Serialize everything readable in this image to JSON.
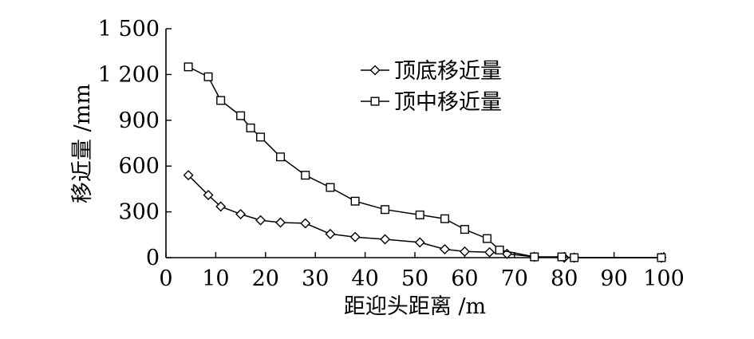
{
  "chart_data": {
    "type": "line",
    "xlabel": "距迎头距离 /m",
    "ylabel": "移近量 /mm",
    "xlim": [
      0,
      100
    ],
    "ylim": [
      0,
      1500
    ],
    "x_ticks": [
      0,
      10,
      20,
      30,
      40,
      50,
      60,
      70,
      80,
      90,
      100
    ],
    "y_ticks": [
      0,
      300,
      600,
      900,
      1200,
      1500
    ],
    "x_tick_labels": [
      "0",
      "10",
      "20",
      "30",
      "40",
      "50",
      "60",
      "70",
      "80",
      "90",
      "100"
    ],
    "y_tick_labels": [
      "0",
      "300",
      "600",
      "900",
      "1 200",
      "1 500"
    ],
    "grid": false,
    "legend_position": "top-right",
    "series": [
      {
        "name": "顶底移近量",
        "marker": "diamond",
        "color": "#000000",
        "points": [
          [
            4.5,
            540
          ],
          [
            8.5,
            410
          ],
          [
            11,
            335
          ],
          [
            15,
            285
          ],
          [
            19,
            245
          ],
          [
            23,
            230
          ],
          [
            28,
            225
          ],
          [
            33,
            155
          ],
          [
            38,
            135
          ],
          [
            44,
            120
          ],
          [
            51,
            100
          ],
          [
            56,
            55
          ],
          [
            60,
            40
          ],
          [
            65,
            35
          ],
          [
            68.5,
            25
          ],
          [
            74,
            5
          ],
          [
            80,
            0
          ],
          [
            82,
            0
          ],
          [
            99.5,
            0
          ]
        ]
      },
      {
        "name": "顶中移近量",
        "marker": "square",
        "color": "#000000",
        "points": [
          [
            4.5,
            1250
          ],
          [
            8.5,
            1185
          ],
          [
            11,
            1030
          ],
          [
            15,
            930
          ],
          [
            17,
            850
          ],
          [
            19,
            790
          ],
          [
            23,
            660
          ],
          [
            28,
            540
          ],
          [
            33,
            460
          ],
          [
            38,
            370
          ],
          [
            44,
            315
          ],
          [
            51,
            280
          ],
          [
            56,
            255
          ],
          [
            60,
            185
          ],
          [
            64.5,
            125
          ],
          [
            67,
            50
          ],
          [
            74,
            5
          ],
          [
            79.5,
            5
          ],
          [
            82,
            0
          ],
          [
            99.5,
            0
          ]
        ]
      }
    ]
  }
}
